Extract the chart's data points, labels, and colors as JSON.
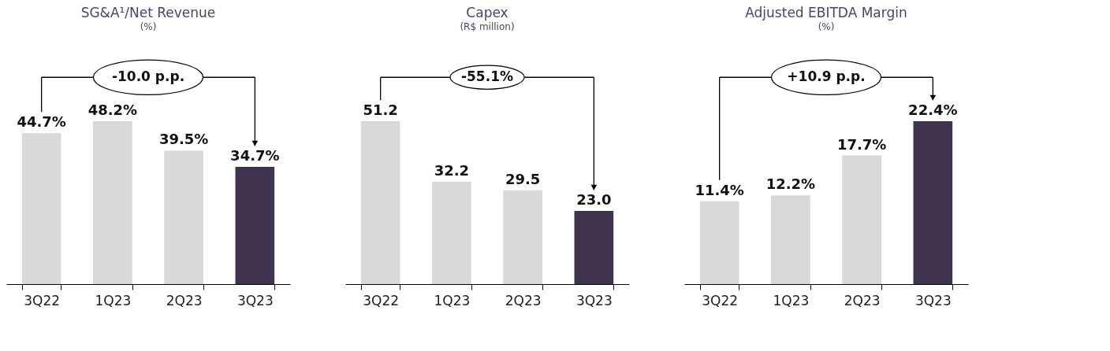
{
  "chart_data": [
    {
      "type": "bar",
      "title": "SG&A¹/Net Revenue",
      "subtitle": "(%)",
      "categories": [
        "3Q22",
        "1Q23",
        "2Q23",
        "3Q23"
      ],
      "values": [
        44.7,
        48.2,
        39.5,
        34.7
      ],
      "colors": [
        "#d9d9db",
        "#d9d9db",
        "#d9d9db",
        "#3f3350"
      ],
      "value_labels": [
        "44.7%",
        "48.2%",
        "39.5%",
        "34.7%"
      ],
      "annotations": [
        "-10.0 p.p."
      ]
    },
    {
      "type": "bar",
      "title": "Capex",
      "subtitle": "(R$ million)",
      "categories": [
        "3Q22",
        "1Q23",
        "2Q23",
        "3Q23"
      ],
      "values": [
        51.2,
        32.2,
        29.5,
        23.0
      ],
      "colors": [
        "#d9d9db",
        "#d9d9db",
        "#d9d9db",
        "#3f3350"
      ],
      "value_labels": [
        "51.2",
        "32.2",
        "29.5",
        "23.0"
      ],
      "annotations": [
        "-55.1%"
      ]
    },
    {
      "type": "bar",
      "title": "Adjusted EBITDA Margin",
      "subtitle": "(%)",
      "categories": [
        "3Q22",
        "1Q23",
        "2Q23",
        "3Q23"
      ],
      "values": [
        11.4,
        12.2,
        17.7,
        22.4
      ],
      "colors": [
        "#d9d9db",
        "#d9d9db",
        "#d9d9db",
        "#3f3350"
      ],
      "value_labels": [
        "11.4%",
        "12.2%",
        "17.7%",
        "22.4%"
      ],
      "annotations": [
        "+10.9 p.p."
      ]
    }
  ]
}
